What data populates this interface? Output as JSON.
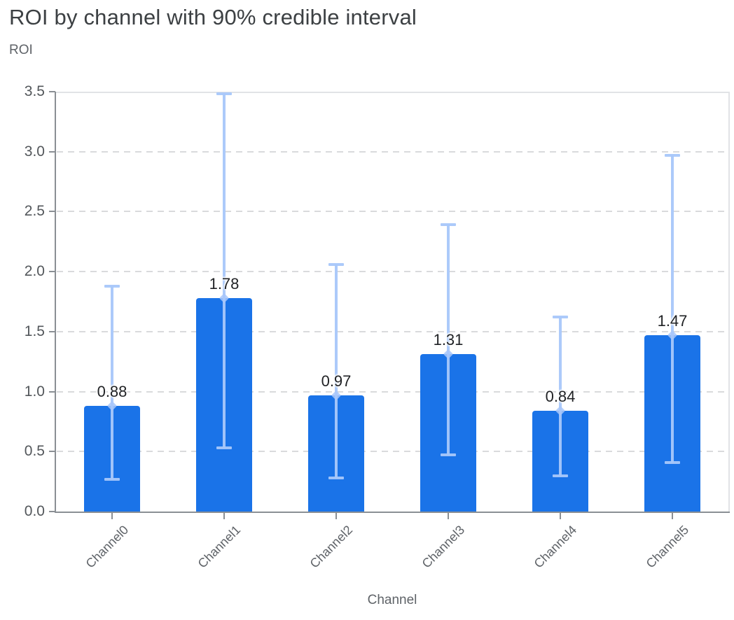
{
  "chart_data": {
    "type": "bar",
    "title": "ROI by channel with 90% credible interval",
    "xlabel": "Channel",
    "ylabel": "ROI",
    "categories": [
      "Channel0",
      "Channel1",
      "Channel2",
      "Channel3",
      "Channel4",
      "Channel5"
    ],
    "series": [
      {
        "name": "ROI",
        "values": [
          0.88,
          1.78,
          0.97,
          1.31,
          0.84,
          1.47
        ],
        "value_labels": [
          "0.88",
          "1.78",
          "0.97",
          "1.31",
          "0.84",
          "1.47"
        ],
        "error_low": [
          0.27,
          0.53,
          0.28,
          0.47,
          0.3,
          0.41
        ],
        "error_high": [
          1.88,
          3.48,
          2.06,
          2.39,
          1.62,
          2.97
        ],
        "error_meaning": "90% credible interval"
      }
    ],
    "ylim": [
      0,
      3.5
    ],
    "yticks": [
      0.0,
      0.5,
      1.0,
      1.5,
      2.0,
      2.5,
      3.0,
      3.5
    ],
    "ytick_labels": [
      "0.0",
      "0.5",
      "1.0",
      "1.5",
      "2.0",
      "2.5",
      "3.0",
      "3.5"
    ],
    "grid": {
      "horizontal": true,
      "style": "dashed"
    },
    "legend": {
      "visible": false
    },
    "colors": {
      "bar": "#1a73e8",
      "error_bar": "#a8c7fa",
      "marker": "#a8c7fa",
      "gridline": "#d9dadc",
      "axis": "#8a8f94",
      "plot_border": "#e1e3e6",
      "title_text": "#3c4043",
      "axis_label_text": "#5f6368",
      "tick_label_text": "#53575b",
      "value_label_text": "#1f2124"
    }
  }
}
